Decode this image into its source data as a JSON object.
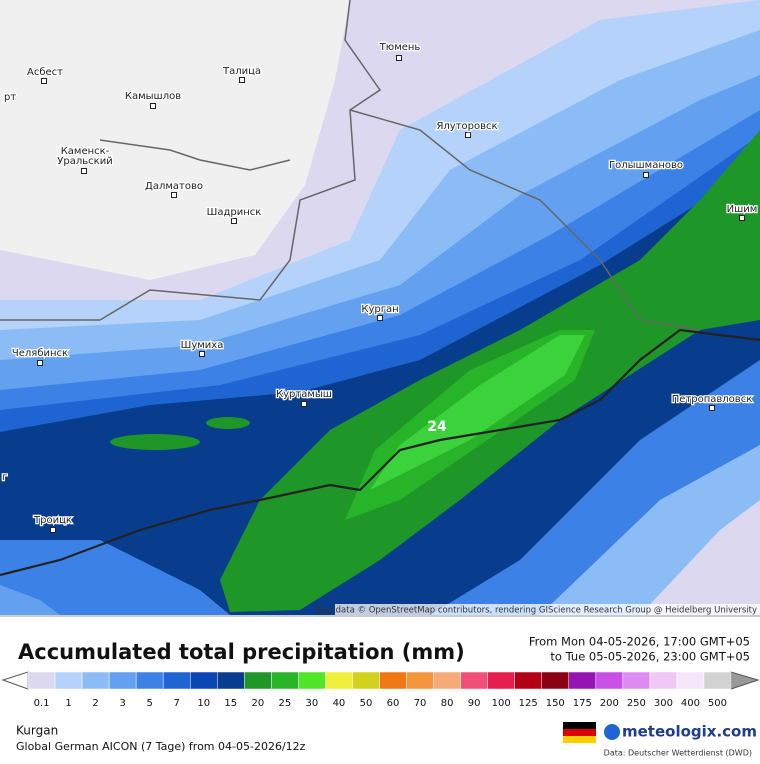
{
  "map": {
    "cities": [
      {
        "lines": [
          "Тюмень"
        ]
      },
      {
        "lines": [
          "Асбест"
        ]
      },
      {
        "lines": [
          "рт"
        ]
      },
      {
        "lines": [
          "Талица"
        ]
      },
      {
        "lines": [
          "Камышлов"
        ]
      },
      {
        "lines": [
          "Ялуторовск"
        ]
      },
      {
        "lines": [
          "Каменск-",
          "Уральский"
        ]
      },
      {
        "lines": [
          "Голышманово"
        ]
      },
      {
        "lines": [
          "Далматово"
        ]
      },
      {
        "lines": [
          "Шадринск"
        ]
      },
      {
        "lines": [
          "Ишим"
        ]
      },
      {
        "lines": [
          "Курган"
        ]
      },
      {
        "lines": [
          "Шумиха"
        ]
      },
      {
        "lines": [
          "Челябинск"
        ]
      },
      {
        "lines": [
          "Куртамыш"
        ]
      },
      {
        "lines": [
          "Петропавловск"
        ]
      },
      {
        "lines": [
          "Троицк"
        ]
      },
      {
        "lines": [
          "г"
        ]
      }
    ],
    "max_label": "24",
    "attribution": "Map data © OpenStreetMap contributors, rendering GIScience Research Group @ Heidelberg University"
  },
  "header": {
    "title": "Accumulated total precipitation (mm)",
    "from": "From Mon 04-05-2026, 17:00 GMT+05",
    "to": "to Tue 05-05-2026, 23:00 GMT+05"
  },
  "legend": {
    "labels": [
      "0.1",
      "1",
      "2",
      "3",
      "5",
      "7",
      "10",
      "15",
      "20",
      "25",
      "30",
      "40",
      "50",
      "60",
      "70",
      "80",
      "90",
      "100",
      "125",
      "150",
      "175",
      "200",
      "250",
      "300",
      "400",
      "500"
    ],
    "colors": [
      "#dcd8f0",
      "#b4d2fa",
      "#8cbcf5",
      "#64a0f0",
      "#3c82e6",
      "#1e64d2",
      "#0a46b4",
      "#083c8c",
      "#1e9628",
      "#28b428",
      "#50e628",
      "#f0f03c",
      "#d2d21e",
      "#f07814",
      "#f5963c",
      "#f5aa78",
      "#f05078",
      "#e61e50",
      "#b40014",
      "#8c0014",
      "#9614b4",
      "#c850e6",
      "#dc8cf0",
      "#f0c8f5",
      "#f5e6fa",
      "#d2d2d2"
    ]
  },
  "footer": {
    "location": "Kurgan",
    "model": "Global German AICON (7 Tage) from 04-05-2026/12z",
    "brand": "meteologix.com",
    "source": "Data: Deutscher Wetterdienst (DWD)"
  }
}
